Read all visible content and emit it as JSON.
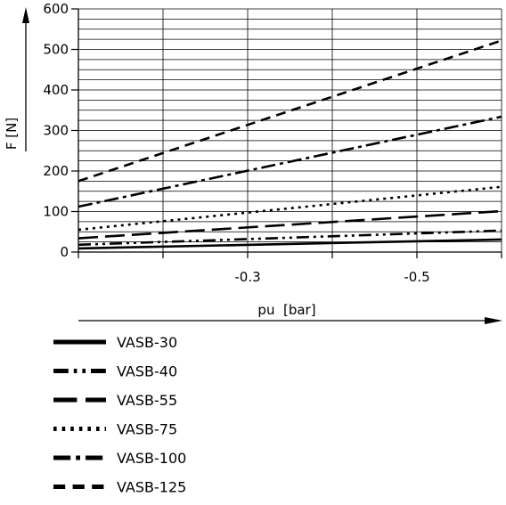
{
  "chart_data": {
    "type": "line",
    "xlabel": "pu  [bar]",
    "ylabel": "F [N]",
    "xlim": [
      -0.1,
      -0.6
    ],
    "ylim": [
      0,
      600
    ],
    "x_ticks": [
      {
        "value": -0.3,
        "label": "-0.3"
      },
      {
        "value": -0.5,
        "label": "-0.5"
      }
    ],
    "y_ticks": [
      {
        "value": 0,
        "label": "0"
      },
      {
        "value": 100,
        "label": "100"
      },
      {
        "value": 200,
        "label": "200"
      },
      {
        "value": 300,
        "label": "300"
      },
      {
        "value": 400,
        "label": "400"
      },
      {
        "value": 500,
        "label": "500"
      },
      {
        "value": 600,
        "label": "600"
      }
    ],
    "grid": true,
    "legend_position": "bottom",
    "series": [
      {
        "name": "VASB-30",
        "dash": "solid",
        "x": [
          -0.1,
          -0.6
        ],
        "y": [
          9,
          31
        ]
      },
      {
        "name": "VASB-40",
        "dash": "dash-dot-dot",
        "x": [
          -0.1,
          -0.6
        ],
        "y": [
          18,
          53
        ]
      },
      {
        "name": "VASB-55",
        "dash": "long-dash",
        "x": [
          -0.1,
          -0.6
        ],
        "y": [
          34,
          101
        ]
      },
      {
        "name": "VASB-75",
        "dash": "dotted",
        "x": [
          -0.1,
          -0.6
        ],
        "y": [
          55,
          161
        ]
      },
      {
        "name": "VASB-100",
        "dash": "dash-dot",
        "x": [
          -0.1,
          -0.6
        ],
        "y": [
          112,
          334
        ]
      },
      {
        "name": "VASB-125",
        "dash": "dashed",
        "x": [
          -0.1,
          -0.6
        ],
        "y": [
          175,
          522
        ]
      }
    ]
  }
}
